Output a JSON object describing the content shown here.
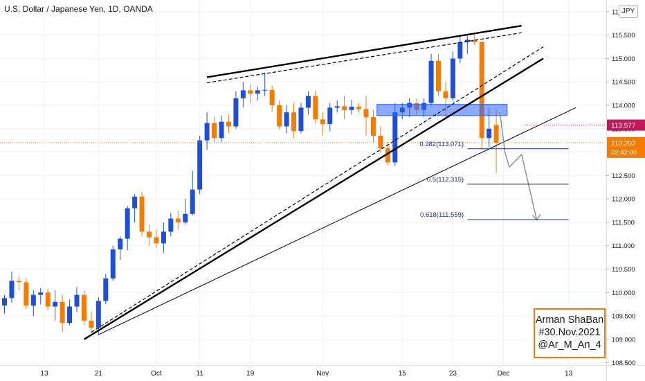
{
  "title": "U.S. Dollar / Japanese Yen, 1D, OANDA",
  "currency_button": "JPY",
  "colors": {
    "up": "#1e4fd8",
    "down": "#f57c00",
    "fib": "#1a2a8a",
    "zone": "#2962ff",
    "last_badge": "#f57c00",
    "prev_badge": "#c2185b"
  },
  "price_scale": {
    "ticks": [
      "116.000",
      "115.500",
      "115.000",
      "114.500",
      "114.000",
      "113.500",
      "113.000",
      "112.500",
      "112.000",
      "111.500",
      "111.000",
      "110.500",
      "110.000",
      "109.500",
      "109.000",
      "108.500"
    ],
    "prev_close_label": "113.577",
    "last_price_label": "113.203",
    "countdown_label": "02:42:00"
  },
  "time_scale": {
    "ticks": [
      "13",
      "21",
      "Oct",
      "11",
      "19",
      "Nov",
      "15",
      "23",
      "Dec",
      "13"
    ]
  },
  "fib_levels": [
    {
      "label": "0.382(113.071)",
      "price": 113.071
    },
    {
      "label": "0.5(112.315)",
      "price": 112.315
    },
    {
      "label": "0.618(111.559)",
      "price": 111.559
    }
  ],
  "signature": {
    "line1": "Arman ShaBan",
    "line2": "#30.Nov.2021",
    "line3": "@Ar_M_An_4"
  },
  "chart_data": {
    "type": "candlestick",
    "title": "U.S. Dollar / Japanese Yen, 1D, OANDA",
    "ylim": [
      108.45,
      116.25
    ],
    "candles": [
      {
        "o": 109.72,
        "h": 109.95,
        "l": 109.55,
        "c": 109.88
      },
      {
        "o": 109.88,
        "h": 110.45,
        "l": 109.78,
        "c": 110.25
      },
      {
        "o": 110.25,
        "h": 110.35,
        "l": 110.05,
        "c": 110.22
      },
      {
        "o": 110.22,
        "h": 110.3,
        "l": 109.65,
        "c": 109.72
      },
      {
        "o": 109.72,
        "h": 110.05,
        "l": 109.5,
        "c": 109.95
      },
      {
        "o": 109.95,
        "h": 110.1,
        "l": 109.75,
        "c": 110.0
      },
      {
        "o": 110.0,
        "h": 110.08,
        "l": 109.62,
        "c": 109.7
      },
      {
        "o": 109.7,
        "h": 110.05,
        "l": 109.4,
        "c": 109.8
      },
      {
        "o": 109.8,
        "h": 109.95,
        "l": 109.15,
        "c": 109.35
      },
      {
        "o": 109.35,
        "h": 109.85,
        "l": 109.3,
        "c": 109.7
      },
      {
        "o": 109.7,
        "h": 110.12,
        "l": 109.58,
        "c": 109.95
      },
      {
        "o": 109.95,
        "h": 110.05,
        "l": 109.3,
        "c": 109.4
      },
      {
        "o": 109.4,
        "h": 109.6,
        "l": 109.15,
        "c": 109.25
      },
      {
        "o": 109.25,
        "h": 109.9,
        "l": 109.1,
        "c": 109.82
      },
      {
        "o": 109.82,
        "h": 110.4,
        "l": 109.75,
        "c": 110.3
      },
      {
        "o": 110.3,
        "h": 111.0,
        "l": 110.25,
        "c": 110.92
      },
      {
        "o": 110.92,
        "h": 111.2,
        "l": 110.7,
        "c": 111.15
      },
      {
        "o": 111.15,
        "h": 111.85,
        "l": 110.9,
        "c": 111.8
      },
      {
        "o": 111.8,
        "h": 112.1,
        "l": 111.5,
        "c": 112.05
      },
      {
        "o": 112.05,
        "h": 112.15,
        "l": 111.2,
        "c": 111.3
      },
      {
        "o": 111.3,
        "h": 111.45,
        "l": 111.0,
        "c": 111.18
      },
      {
        "o": 111.18,
        "h": 111.35,
        "l": 110.95,
        "c": 111.05
      },
      {
        "o": 111.05,
        "h": 111.5,
        "l": 110.85,
        "c": 111.3
      },
      {
        "o": 111.3,
        "h": 111.7,
        "l": 111.2,
        "c": 111.58
      },
      {
        "o": 111.58,
        "h": 111.75,
        "l": 111.35,
        "c": 111.5
      },
      {
        "o": 111.5,
        "h": 112.0,
        "l": 111.45,
        "c": 111.68
      },
      {
        "o": 111.68,
        "h": 112.6,
        "l": 111.65,
        "c": 112.2
      },
      {
        "o": 112.2,
        "h": 113.35,
        "l": 112.1,
        "c": 113.25
      },
      {
        "o": 113.25,
        "h": 113.85,
        "l": 113.05,
        "c": 113.62
      },
      {
        "o": 113.62,
        "h": 113.75,
        "l": 113.2,
        "c": 113.3
      },
      {
        "o": 113.3,
        "h": 113.78,
        "l": 113.22,
        "c": 113.65
      },
      {
        "o": 113.65,
        "h": 113.8,
        "l": 113.4,
        "c": 113.55
      },
      {
        "o": 113.55,
        "h": 114.3,
        "l": 113.5,
        "c": 114.15
      },
      {
        "o": 114.15,
        "h": 114.5,
        "l": 113.95,
        "c": 114.32
      },
      {
        "o": 114.32,
        "h": 114.45,
        "l": 114.05,
        "c": 114.25
      },
      {
        "o": 114.25,
        "h": 114.4,
        "l": 114.1,
        "c": 114.32
      },
      {
        "o": 114.32,
        "h": 114.7,
        "l": 114.2,
        "c": 114.33
      },
      {
        "o": 114.33,
        "h": 114.42,
        "l": 113.85,
        "c": 114.0
      },
      {
        "o": 114.0,
        "h": 114.1,
        "l": 113.5,
        "c": 113.55
      },
      {
        "o": 113.55,
        "h": 114.0,
        "l": 113.4,
        "c": 113.85
      },
      {
        "o": 113.85,
        "h": 114.05,
        "l": 113.3,
        "c": 113.45
      },
      {
        "o": 113.45,
        "h": 114.05,
        "l": 113.4,
        "c": 113.95
      },
      {
        "o": 113.95,
        "h": 114.3,
        "l": 113.8,
        "c": 114.2
      },
      {
        "o": 114.2,
        "h": 114.32,
        "l": 113.6,
        "c": 113.7
      },
      {
        "o": 113.7,
        "h": 113.85,
        "l": 113.35,
        "c": 113.6
      },
      {
        "o": 113.6,
        "h": 114.05,
        "l": 113.45,
        "c": 113.95
      },
      {
        "o": 113.95,
        "h": 114.1,
        "l": 113.85,
        "c": 113.98
      },
      {
        "o": 113.98,
        "h": 114.2,
        "l": 113.7,
        "c": 113.9
      },
      {
        "o": 113.9,
        "h": 114.12,
        "l": 113.8,
        "c": 113.97
      },
      {
        "o": 113.97,
        "h": 114.05,
        "l": 113.85,
        "c": 113.92
      },
      {
        "o": 113.92,
        "h": 114.2,
        "l": 113.35,
        "c": 113.75
      },
      {
        "o": 113.75,
        "h": 113.9,
        "l": 113.2,
        "c": 113.35
      },
      {
        "o": 113.35,
        "h": 113.55,
        "l": 113.0,
        "c": 113.08
      },
      {
        "o": 113.08,
        "h": 113.22,
        "l": 112.72,
        "c": 112.78
      },
      {
        "o": 112.78,
        "h": 114.05,
        "l": 112.7,
        "c": 113.85
      },
      {
        "o": 113.85,
        "h": 114.05,
        "l": 113.7,
        "c": 113.95
      },
      {
        "o": 113.95,
        "h": 114.15,
        "l": 113.75,
        "c": 114.05
      },
      {
        "o": 114.05,
        "h": 114.15,
        "l": 113.8,
        "c": 113.9
      },
      {
        "o": 113.9,
        "h": 114.15,
        "l": 113.75,
        "c": 114.05
      },
      {
        "o": 114.05,
        "h": 115.1,
        "l": 114.0,
        "c": 114.95
      },
      {
        "o": 114.95,
        "h": 115.1,
        "l": 114.2,
        "c": 114.3
      },
      {
        "o": 114.3,
        "h": 114.5,
        "l": 113.7,
        "c": 114.15
      },
      {
        "o": 114.15,
        "h": 115.15,
        "l": 114.1,
        "c": 115.0
      },
      {
        "o": 115.0,
        "h": 115.48,
        "l": 114.9,
        "c": 115.35
      },
      {
        "o": 115.35,
        "h": 115.52,
        "l": 115.1,
        "c": 115.4
      },
      {
        "o": 115.4,
        "h": 115.5,
        "l": 115.28,
        "c": 115.35
      },
      {
        "o": 115.35,
        "h": 115.38,
        "l": 113.05,
        "c": 113.3
      },
      {
        "o": 113.3,
        "h": 113.95,
        "l": 113.1,
        "c": 113.5
      },
      {
        "o": 113.58,
        "h": 113.92,
        "l": 112.55,
        "c": 113.2
      }
    ],
    "time_ticks": [
      "13",
      "21",
      "Oct",
      "11",
      "19",
      "Nov",
      "15",
      "23",
      "Dec",
      "13"
    ]
  }
}
